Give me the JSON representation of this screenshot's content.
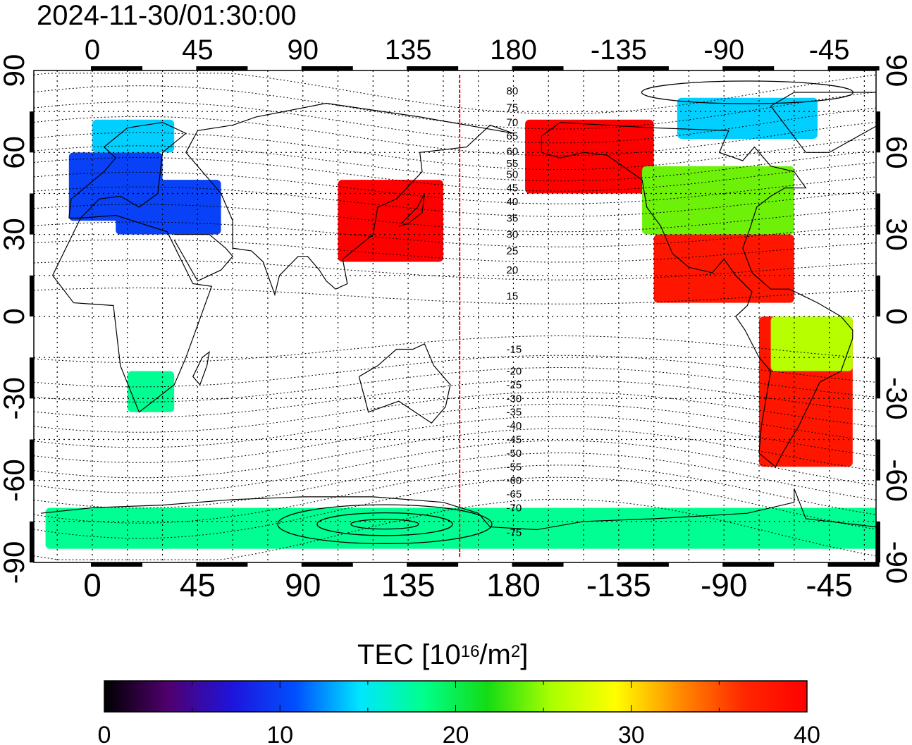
{
  "header": {
    "timestamp": "2024-11-30/01:30:00"
  },
  "axes": {
    "top_lon_labels": [
      "0",
      "45",
      "90",
      "135",
      "180",
      "-135",
      "-90",
      "-45"
    ],
    "bottom_lon_labels": [
      "0",
      "45",
      "90",
      "135",
      "180",
      "-135",
      "-90",
      "-45"
    ],
    "left_lat_labels": [
      "90",
      "60",
      "30",
      "0",
      "-30",
      "-60",
      "-90"
    ],
    "right_lat_labels": [
      "90",
      "60",
      "30",
      "0",
      "-30",
      "-60",
      "-90"
    ]
  },
  "map": {
    "lon_range": [
      -25,
      335
    ],
    "lat_range": [
      -90,
      90
    ],
    "grid": "on",
    "contour_label_lon": 180,
    "contour_labels": [
      {
        "text": "80",
        "lat": 82.5
      },
      {
        "text": "75",
        "lat": 76.5
      },
      {
        "text": "70",
        "lat": 71
      },
      {
        "text": "65",
        "lat": 66
      },
      {
        "text": "60",
        "lat": 60.5
      },
      {
        "text": "55",
        "lat": 56
      },
      {
        "text": "50",
        "lat": 52
      },
      {
        "text": "45",
        "lat": 47
      },
      {
        "text": "40",
        "lat": 42
      },
      {
        "text": "35",
        "lat": 36
      },
      {
        "text": "30",
        "lat": 30
      },
      {
        "text": "25",
        "lat": 24
      },
      {
        "text": "20",
        "lat": 17
      },
      {
        "text": "15",
        "lat": 7.5
      },
      {
        "text": "-15",
        "lat": -12
      },
      {
        "text": "-20",
        "lat": -20
      },
      {
        "text": "-25",
        "lat": -25
      },
      {
        "text": "-30",
        "lat": -30
      },
      {
        "text": "-35",
        "lat": -35
      },
      {
        "text": "-40",
        "lat": -40
      },
      {
        "text": "-45",
        "lat": -45
      },
      {
        "text": "-50",
        "lat": -50
      },
      {
        "text": "-55",
        "lat": -55
      },
      {
        "text": "-60",
        "lat": -60
      },
      {
        "text": "-65",
        "lat": -65
      },
      {
        "text": "-70",
        "lat": -70
      },
      {
        "text": "-75",
        "lat": -79
      }
    ],
    "terminator_lon": 157
  },
  "colorbar": {
    "title_main": "TEC  [10",
    "title_exp": "16",
    "title_unit": "/m",
    "title_exp2": "2",
    "title_close": "]",
    "min": 0,
    "max": 40,
    "tick_labels": [
      "0",
      "10",
      "20",
      "30",
      "40"
    ],
    "stops": [
      "#000000",
      "#50006e",
      "#1e14dc",
      "#0050ff",
      "#00e6ff",
      "#00ff8c",
      "#14dc14",
      "#aaff00",
      "#ffff00",
      "#ff8c00",
      "#ff2800",
      "#ff0000"
    ]
  },
  "colors": {
    "terminator": "#ff0000",
    "coast": "#000000",
    "grid": "#000000"
  },
  "chart_data": {
    "type": "heatmap",
    "title": "2024-11-30/01:30:00",
    "xlabel": "",
    "ylabel": "",
    "xlim": [
      -25,
      335
    ],
    "ylim": [
      -90,
      90
    ],
    "value_label": "TEC  [10^16/m^2]",
    "value_range": [
      0,
      40
    ],
    "regions": [
      {
        "lon": [
          -10,
          30
        ],
        "lat": [
          35,
          60
        ],
        "value": 10
      },
      {
        "lon": [
          0,
          35
        ],
        "lat": [
          60,
          72
        ],
        "value": 14
      },
      {
        "lon": [
          10,
          55
        ],
        "lat": [
          30,
          50
        ],
        "value": 10
      },
      {
        "lon": [
          105,
          150
        ],
        "lat": [
          20,
          50
        ],
        "value": 40
      },
      {
        "lon": [
          185,
          240
        ],
        "lat": [
          45,
          72
        ],
        "value": 40
      },
      {
        "lon": [
          235,
          300
        ],
        "lat": [
          30,
          55
        ],
        "value": 24
      },
      {
        "lon": [
          240,
          300
        ],
        "lat": [
          5,
          30
        ],
        "value": 38
      },
      {
        "lon": [
          285,
          325
        ],
        "lat": [
          -55,
          0
        ],
        "value": 38
      },
      {
        "lon": [
          290,
          325
        ],
        "lat": [
          -20,
          0
        ],
        "value": 26
      },
      {
        "lon": [
          15,
          35
        ],
        "lat": [
          -35,
          -20
        ],
        "value": 18
      },
      {
        "lon": [
          -20,
          340
        ],
        "lat": [
          -85,
          -70
        ],
        "value": 18
      },
      {
        "lon": [
          250,
          310
        ],
        "lat": [
          65,
          80
        ],
        "value": 14
      }
    ]
  }
}
